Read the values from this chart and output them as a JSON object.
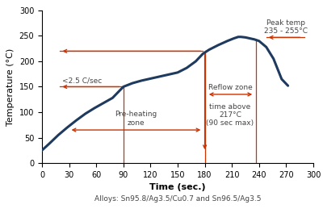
{
  "title": "",
  "xlabel": "Time (sec.)",
  "ylabel": "Temperature (°C)",
  "footnote": "Alloys: Sn95.8/Ag3.5/Cu0.7 and Sn96.5/Ag3.5",
  "xlim": [
    0,
    300
  ],
  "ylim": [
    0,
    300
  ],
  "xticks": [
    0,
    30,
    60,
    90,
    120,
    150,
    180,
    210,
    240,
    270,
    300
  ],
  "yticks": [
    0,
    50,
    100,
    150,
    200,
    250,
    300
  ],
  "curve_color": "#1e3a5f",
  "arrow_color": "#cc3300",
  "annotation_color": "#444444",
  "curve_x": [
    0,
    8,
    18,
    28,
    38,
    48,
    58,
    68,
    78,
    90,
    100,
    110,
    120,
    130,
    140,
    150,
    160,
    170,
    178,
    185,
    195,
    205,
    212,
    217,
    220,
    225,
    230,
    235,
    240,
    248,
    256,
    265,
    272
  ],
  "curve_y": [
    25,
    38,
    55,
    70,
    84,
    97,
    108,
    118,
    128,
    150,
    157,
    162,
    166,
    170,
    174,
    178,
    187,
    200,
    215,
    223,
    232,
    240,
    245,
    248,
    248,
    247,
    245,
    243,
    240,
    228,
    205,
    165,
    152
  ]
}
